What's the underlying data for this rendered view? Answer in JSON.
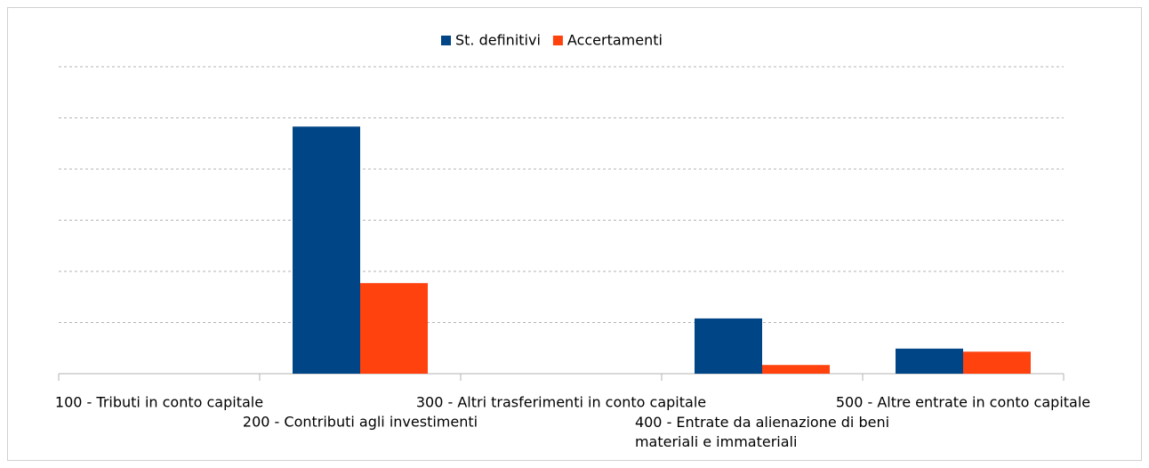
{
  "chart_data": {
    "type": "bar",
    "categories": [
      "100 - Tributi in conto capitale",
      "200 - Contributi agli investimenti",
      "300 - Altri trasferimenti in conto capitale",
      "400 - Entrate da alienazione di beni materiali e immateriali",
      "500 - Altre entrate in conto capitale"
    ],
    "series": [
      {
        "name": "St. definitivi",
        "color": "#004586",
        "values": [
          0,
          4.83,
          0,
          1.08,
          0.49
        ]
      },
      {
        "name": "Accertamenti",
        "color": "#ff420e",
        "values": [
          0,
          1.77,
          0,
          0.17,
          0.43
        ]
      }
    ],
    "ylim": [
      0,
      6
    ],
    "yticks": [
      0,
      1,
      2,
      3,
      4,
      5,
      6
    ],
    "grid": true,
    "legend": "top"
  }
}
